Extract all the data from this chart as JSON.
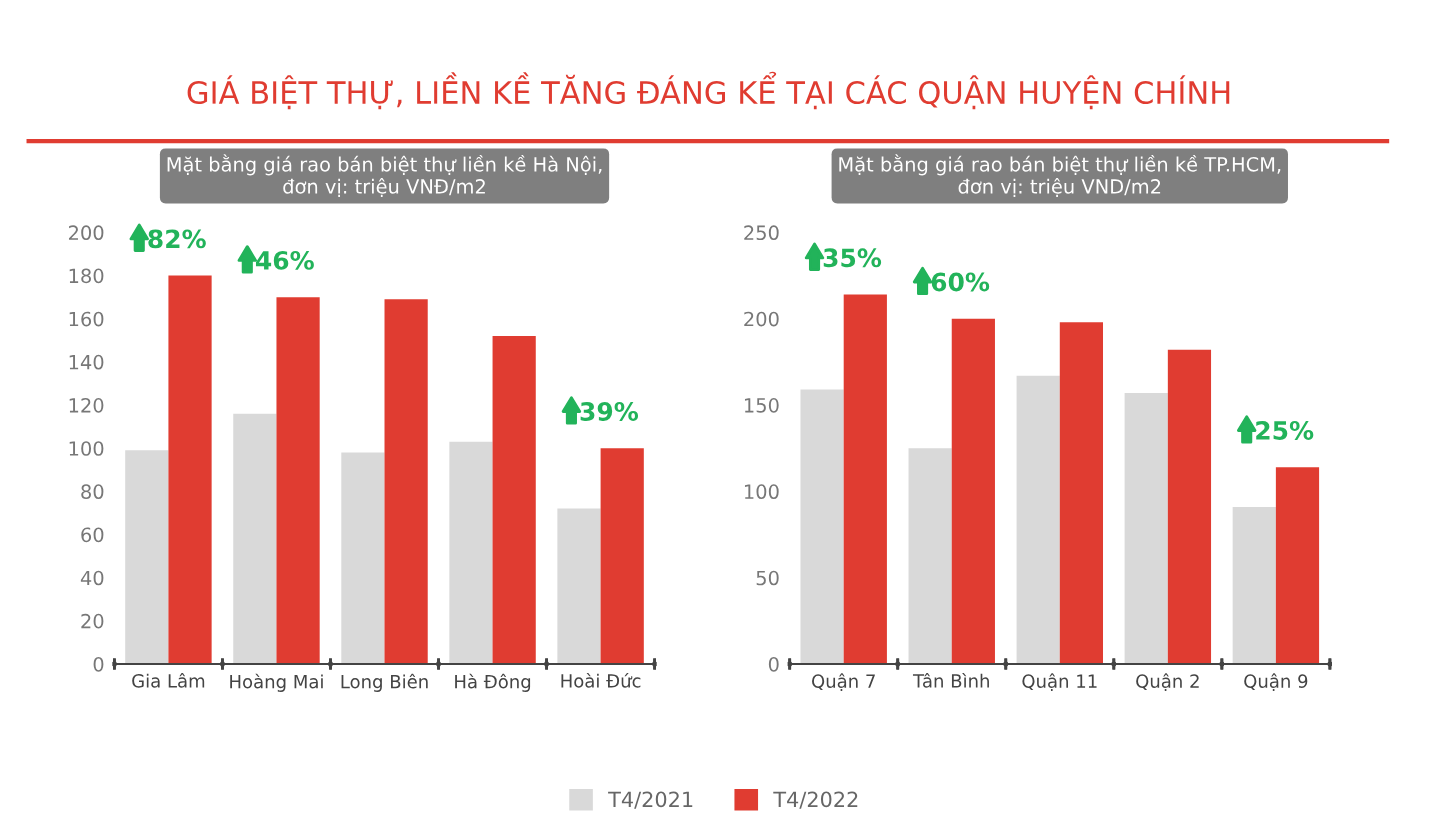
{
  "chart_data": [
    {
      "type": "bar",
      "title": "GIÁ BIỆT THỰ, LIỀN KỀ TĂNG ĐÁNG KỂ TẠI CÁC QUẬN HUYỆN CHÍNH",
      "subtitle": "Mặt bằng giá rao bán biệt thự liền kề Hà Nội,\nđơn vị: triệu VNĐ/m2",
      "categories": [
        "Gia Lâm",
        "Hoàng Mai",
        "Long Biên",
        "Hà Đông",
        "Hoài Đức"
      ],
      "series": [
        {
          "name": "T4/2021",
          "color": "#d9d9d9",
          "values": [
            99,
            116,
            98,
            103,
            72
          ]
        },
        {
          "name": "T4/2022",
          "color": "#e03c31",
          "values": [
            180,
            170,
            169,
            152,
            100
          ]
        }
      ],
      "ylim": [
        0,
        200
      ],
      "yticks": [
        0,
        20,
        40,
        60,
        80,
        100,
        120,
        140,
        160,
        180,
        200
      ],
      "grid": false,
      "legend": "bottom",
      "annotations": [
        "82%",
        "46%",
        "39%"
      ]
    },
    {
      "type": "bar",
      "subtitle": "Mặt bằng giá rao bán biệt thự liền kề TP.HCM,\nđơn vị: triệu VND/m2",
      "categories": [
        "Quận 7",
        "Tân Bình",
        "Quận 11",
        "Quận 2",
        "Quận 9"
      ],
      "series": [
        {
          "name": "T4/2021",
          "color": "#d9d9d9",
          "values": [
            159,
            125,
            167,
            157,
            91
          ]
        },
        {
          "name": "T4/2022",
          "color": "#e03c31",
          "values": [
            214,
            200,
            198,
            182,
            114
          ]
        }
      ],
      "ylim": [
        0,
        250
      ],
      "yticks": [
        0,
        50,
        100,
        150,
        200,
        250
      ],
      "grid": false,
      "legend": "bottom",
      "annotations": [
        "35%",
        "60%",
        "25%"
      ]
    }
  ]
}
